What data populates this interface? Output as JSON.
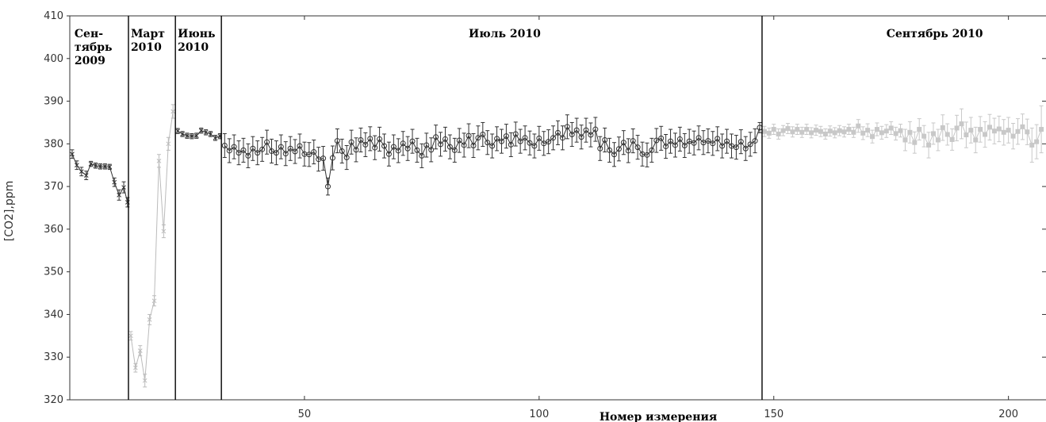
{
  "chart_data": {
    "type": "scatter",
    "title": "",
    "xlabel": "Номер измерения",
    "ylabel": "[CO2],ppm",
    "xlim": [
      0,
      208
    ],
    "ylim": [
      320,
      410
    ],
    "x_ticks": [
      50,
      100,
      150,
      200
    ],
    "y_ticks": [
      320,
      330,
      340,
      350,
      360,
      370,
      380,
      390,
      400,
      410
    ],
    "grid": false,
    "period_dividers": [
      12.5,
      22.5,
      32.3,
      147.5
    ],
    "periods": [
      {
        "label_lines": [
          "Сен-",
          "тябрь",
          "2009"
        ],
        "x": 1
      },
      {
        "label_lines": [
          "Март",
          "2010"
        ],
        "x": 13
      },
      {
        "label_lines": [
          "Июнь",
          "2010"
        ],
        "x": 23
      },
      {
        "label_lines": [
          "Июль 2010"
        ],
        "x": 85
      },
      {
        "label_lines": [
          "Сентябрь 2010"
        ],
        "x": 174
      }
    ],
    "series": [
      {
        "color": "#333333",
        "marker": "cross",
        "points": [
          [
            0.5,
            377.6,
            1
          ],
          [
            1.5,
            375,
            1
          ],
          [
            2.5,
            373.5,
            1
          ],
          [
            3.5,
            372.6,
            1
          ],
          [
            4.5,
            375.3,
            0.6
          ],
          [
            5.5,
            374.9,
            0.6
          ],
          [
            6.5,
            374.7,
            0.6
          ],
          [
            7.5,
            374.7,
            0.6
          ],
          [
            8.5,
            374.6,
            0.6
          ],
          [
            9.5,
            371,
            1
          ],
          [
            10.5,
            368,
            1.2
          ],
          [
            11.5,
            369.8,
            1.3
          ],
          [
            12.3,
            366.3,
            1.1
          ]
        ]
      },
      {
        "color": "#bbbbbb",
        "marker": "cross",
        "points": [
          [
            13,
            335,
            1
          ],
          [
            14,
            327.5,
            1
          ],
          [
            15,
            331.5,
            1.2
          ],
          [
            16,
            324.5,
            1.5
          ],
          [
            17,
            338.8,
            1.2
          ],
          [
            18,
            343.2,
            1.2
          ],
          [
            19,
            376,
            1.5
          ],
          [
            20,
            359.5,
            1.5
          ],
          [
            21,
            380,
            1.5
          ],
          [
            22,
            387.6,
            1.6
          ]
        ]
      },
      {
        "color": "#333333",
        "marker": "cross",
        "points": [
          [
            23,
            383,
            0.6
          ],
          [
            24,
            382.3,
            0.6
          ],
          [
            25,
            381.9,
            0.6
          ],
          [
            26,
            381.8,
            0.6
          ],
          [
            27,
            381.9,
            0.6
          ],
          [
            28,
            383.1,
            0.6
          ],
          [
            29,
            382.7,
            0.6
          ],
          [
            30,
            382.3,
            0.6
          ],
          [
            31,
            381.4,
            0.6
          ],
          [
            32,
            381.8,
            0.6
          ]
        ]
      },
      {
        "color": "#333333",
        "marker": "circle",
        "points": [
          [
            33,
            379.6,
            2.8
          ],
          [
            34,
            378.4,
            2.8
          ],
          [
            35,
            379.3,
            2.8
          ],
          [
            36,
            377.9,
            2.8
          ],
          [
            37,
            378.5,
            2.8
          ],
          [
            38,
            377.2,
            2.8
          ],
          [
            39,
            378.9,
            2.8
          ],
          [
            40,
            377.9,
            2.8
          ],
          [
            41,
            378.7,
            2.8
          ],
          [
            42,
            380.4,
            2.8
          ],
          [
            43,
            378.3,
            2.8
          ],
          [
            44,
            377.9,
            2.8
          ],
          [
            45,
            379.3,
            2.8
          ],
          [
            46,
            377.7,
            2.8
          ],
          [
            47,
            378.9,
            2.8
          ],
          [
            48,
            378.2,
            2.8
          ],
          [
            49,
            379.5,
            2.8
          ],
          [
            50,
            377.6,
            2.8
          ],
          [
            51,
            377.5,
            2.8
          ],
          [
            52,
            378.1,
            2.8
          ],
          [
            53,
            376.4,
            2.8
          ],
          [
            54,
            376.6,
            2.8
          ],
          [
            55,
            370,
            2
          ],
          [
            56,
            376.7,
            2.8
          ],
          [
            57,
            380.7,
            2.8
          ],
          [
            58,
            378.3,
            2.8
          ],
          [
            59,
            376.8,
            2.8
          ],
          [
            60,
            380.4,
            2.8
          ],
          [
            61,
            378.6,
            2.8
          ],
          [
            62,
            380.9,
            2.8
          ],
          [
            63,
            379.8,
            2.8
          ],
          [
            64,
            381.2,
            2.8
          ],
          [
            65,
            379.1,
            2.8
          ],
          [
            66,
            381.1,
            2.8
          ],
          [
            67,
            379.5,
            2.8
          ],
          [
            68,
            377.6,
            2.8
          ],
          [
            69,
            379.3,
            2.8
          ],
          [
            70,
            378.4,
            2.8
          ],
          [
            71,
            380.1,
            2.8
          ],
          [
            72,
            378.9,
            2.8
          ],
          [
            73,
            380.6,
            2.8
          ],
          [
            74,
            378.5,
            2.8
          ],
          [
            75,
            377.2,
            2.8
          ],
          [
            76,
            379.7,
            2.8
          ],
          [
            77,
            378.6,
            2.8
          ],
          [
            78,
            381.6,
            2.8
          ],
          [
            79,
            379.9,
            2.8
          ],
          [
            80,
            381.1,
            2.8
          ],
          [
            81,
            379.3,
            2.8
          ],
          [
            82,
            378.5,
            2.8
          ],
          [
            83,
            380.8,
            2.8
          ],
          [
            84,
            379.7,
            2.8
          ],
          [
            85,
            381.9,
            2.8
          ],
          [
            86,
            379.6,
            2.8
          ],
          [
            87,
            381.4,
            2.8
          ],
          [
            88,
            382.2,
            2.8
          ],
          [
            89,
            380.3,
            2.8
          ],
          [
            90,
            379.5,
            2.8
          ],
          [
            91,
            381.2,
            2.8
          ],
          [
            92,
            380.6,
            2.8
          ],
          [
            93,
            381.8,
            2.8
          ],
          [
            94,
            379.8,
            2.8
          ],
          [
            95,
            382.3,
            2.8
          ],
          [
            96,
            380.6,
            2.8
          ],
          [
            97,
            381.4,
            2.8
          ],
          [
            98,
            380.2,
            2.8
          ],
          [
            99,
            379.5,
            2.8
          ],
          [
            100,
            381.3,
            2.8
          ],
          [
            101,
            380.1,
            2.8
          ],
          [
            102,
            380.5,
            2.8
          ],
          [
            103,
            381.4,
            2.8
          ],
          [
            104,
            382.6,
            2.8
          ],
          [
            105,
            381.4,
            2.8
          ],
          [
            106,
            384,
            2.8
          ],
          [
            107,
            382.2,
            2.8
          ],
          [
            108,
            383.2,
            2.8
          ],
          [
            109,
            381.6,
            2.8
          ],
          [
            110,
            383.2,
            2.8
          ],
          [
            111,
            382.1,
            2.8
          ],
          [
            112,
            383.4,
            2.8
          ],
          [
            113,
            378.9,
            2.8
          ],
          [
            114,
            380.9,
            2.8
          ],
          [
            115,
            378.5,
            2.8
          ],
          [
            116,
            377.5,
            2.8
          ],
          [
            117,
            378.8,
            2.8
          ],
          [
            118,
            380.3,
            2.8
          ],
          [
            119,
            378.4,
            2.8
          ],
          [
            120,
            380.7,
            2.8
          ],
          [
            121,
            379.2,
            2.8
          ],
          [
            122,
            377.6,
            2.8
          ],
          [
            123,
            377.4,
            2.8
          ],
          [
            124,
            378.5,
            2.8
          ],
          [
            125,
            380.8,
            2.8
          ],
          [
            126,
            381.3,
            2.8
          ],
          [
            127,
            379.4,
            2.8
          ],
          [
            128,
            380.6,
            2.8
          ],
          [
            129,
            379.7,
            2.8
          ],
          [
            130,
            381.1,
            2.8
          ],
          [
            131,
            379.6,
            2.8
          ],
          [
            132,
            380.6,
            2.8
          ],
          [
            133,
            380.2,
            2.8
          ],
          [
            134,
            381.4,
            2.8
          ],
          [
            135,
            380.3,
            2.8
          ],
          [
            136,
            380.7,
            2.8
          ],
          [
            137,
            380.1,
            2.8
          ],
          [
            138,
            381.2,
            2.8
          ],
          [
            139,
            379.5,
            2.8
          ],
          [
            140,
            380.6,
            2.8
          ],
          [
            141,
            379.5,
            2.8
          ],
          [
            142,
            379.2,
            2.8
          ],
          [
            143,
            380.5,
            2.8
          ],
          [
            144,
            378.9,
            2.8
          ],
          [
            145,
            379.9,
            2.8
          ],
          [
            146,
            380.7,
            2.8
          ],
          [
            147,
            383.8,
            1.2
          ]
        ]
      },
      {
        "color": "#c8c8c8",
        "marker": "square",
        "points": [
          [
            148,
            382.9,
            1.2
          ],
          [
            149,
            382.5,
            1.2
          ],
          [
            150,
            383.4,
            1.2
          ],
          [
            151,
            382.3,
            1.2
          ],
          [
            152,
            383.1,
            1.2
          ],
          [
            153,
            383.6,
            1.2
          ],
          [
            154,
            382.8,
            1.2
          ],
          [
            155,
            383.4,
            1.2
          ],
          [
            156,
            382.7,
            1.2
          ],
          [
            157,
            383.4,
            1.2
          ],
          [
            158,
            382.6,
            1.2
          ],
          [
            159,
            383.2,
            1.2
          ],
          [
            160,
            382.9,
            1.2
          ],
          [
            161,
            382.3,
            1.2
          ],
          [
            162,
            383,
            1.2
          ],
          [
            163,
            382.6,
            1.2
          ],
          [
            164,
            383.1,
            1.2
          ],
          [
            165,
            382.8,
            1.2
          ],
          [
            166,
            383.4,
            1.2
          ],
          [
            167,
            382.7,
            1.2
          ],
          [
            168,
            384.2,
            1.5
          ],
          [
            169,
            382.5,
            1.5
          ],
          [
            170,
            383.2,
            1.5
          ],
          [
            171,
            381.7,
            1.5
          ],
          [
            172,
            383.4,
            1.5
          ],
          [
            173,
            382.6,
            1.5
          ],
          [
            174,
            383,
            1.5
          ],
          [
            175,
            383.7,
            1.5
          ],
          [
            176,
            382.4,
            1.5
          ],
          [
            177,
            383.1,
            1.5
          ],
          [
            178,
            380.9,
            2.5
          ],
          [
            179,
            382.7,
            2.5
          ],
          [
            180,
            380.3,
            2.5
          ],
          [
            181,
            383.4,
            2.5
          ],
          [
            182,
            381.8,
            2.5
          ],
          [
            183,
            379.7,
            3
          ],
          [
            184,
            382.4,
            2.5
          ],
          [
            185,
            380.9,
            2.5
          ],
          [
            186,
            383.8,
            3
          ],
          [
            187,
            382.2,
            2.5
          ],
          [
            188,
            381,
            2.5
          ],
          [
            189,
            383.7,
            3
          ],
          [
            190,
            384.7,
            3.5
          ],
          [
            191,
            382.1,
            3
          ],
          [
            192,
            383.2,
            3
          ],
          [
            193,
            380.9,
            3
          ],
          [
            194,
            383.4,
            3
          ],
          [
            195,
            382.2,
            3
          ],
          [
            196,
            383.9,
            3
          ],
          [
            197,
            383,
            3
          ],
          [
            198,
            383.5,
            3
          ],
          [
            199,
            382.7,
            3
          ],
          [
            200,
            383.2,
            3
          ],
          [
            201,
            381.8,
            3
          ],
          [
            202,
            382.9,
            3
          ],
          [
            203,
            384,
            3
          ],
          [
            204,
            382.8,
            3
          ],
          [
            205,
            379.7,
            4
          ],
          [
            206,
            380.5,
            4
          ],
          [
            207,
            383.4,
            5.5
          ]
        ]
      }
    ]
  }
}
